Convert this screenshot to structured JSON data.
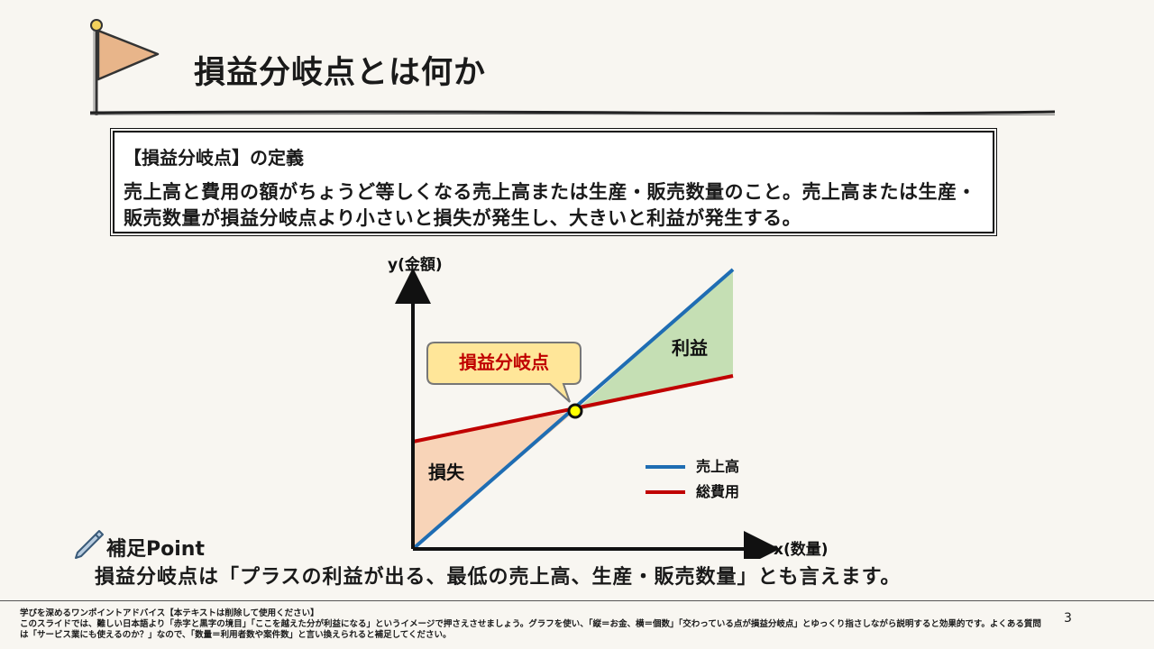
{
  "title": "損益分岐点とは何か",
  "definition": {
    "heading": "【損益分岐点】の定義",
    "body": "売上高と費用の額がちょうど等しくなる売上高または生産・販売数量のこと。売上高または生産・販売数量が損益分岐点より小さいと損失が発生し、大きいと利益が発生する。"
  },
  "diagram": {
    "y_axis_label": "y(金額)",
    "x_axis_label": "x(数量)",
    "callout": "損益分岐点",
    "profit_label": "利益",
    "loss_label": "損失",
    "legend": [
      {
        "label": "売上高",
        "color": "#1f6db3"
      },
      {
        "label": "総費用",
        "color": "#c00000"
      }
    ],
    "colors": {
      "profit_fill": "#c5dfb4",
      "loss_fill": "#f8d4b8",
      "callout_fill": "#ffe699",
      "callout_text": "#c00000",
      "point_fill": "#ffff00",
      "flag_fill": "#e8b58a"
    }
  },
  "point": {
    "label": "補足Point",
    "text": "損益分岐点は「プラスの利益が出る、最低の売上高、生産・販売数量」とも言えます。",
    "icon": "pen-icon"
  },
  "notes": {
    "heading": "学びを深めるワンポイントアドバイス【本テキストは削除して使用ください】",
    "body": "このスライドでは、難しい日本語より「赤字と黒字の境目」「ここを越えた分が利益になる」というイメージで押さえさせましょう。グラフを使い、「縦＝お金、横＝個数」「交わっている点が損益分岐点」とゆっくり指さしながら説明すると効果的です。よくある質問は「サービス業にも使えるのか？」なので、「数量＝利用者数や案件数」と言い換えられると補足してください。"
  },
  "page_number": "3"
}
